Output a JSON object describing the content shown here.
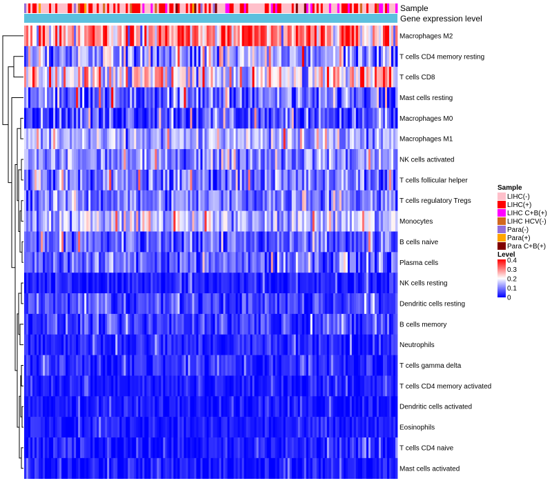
{
  "chart_data": {
    "type": "heatmap",
    "annotations": [
      {
        "name": "Sample",
        "label": "Sample"
      },
      {
        "name": "Gene expression level",
        "label": "Gene expression level"
      }
    ],
    "rows": [
      "Macrophages M2",
      "T cells CD4 memory resting",
      "T cells CD8",
      "Mast cells resting",
      "Macrophages M0",
      "Macrophages M1",
      "NK cells activated",
      "T cells follicular helper",
      "T cells regulatory  Tregs",
      "Monocytes",
      "B cells naive",
      "Plasma cells",
      "NK cells resting",
      "Dendritic cells resting",
      "B cells memory",
      "Neutrophils",
      "T cells gamma delta",
      "T cells CD4 memory activated",
      "Dendritic cells activated",
      "Eosinophils",
      "T cells CD4 naive",
      "Mast cells activated"
    ],
    "row_mean_levels": [
      0.28,
      0.12,
      0.2,
      0.09,
      0.06,
      0.13,
      0.11,
      0.09,
      0.1,
      0.15,
      0.08,
      0.08,
      0.02,
      0.05,
      0.05,
      0.03,
      0.03,
      0.02,
      0.02,
      0.02,
      0.02,
      0.02
    ],
    "row_spread": [
      0.14,
      0.1,
      0.13,
      0.09,
      0.08,
      0.07,
      0.07,
      0.08,
      0.07,
      0.08,
      0.07,
      0.07,
      0.03,
      0.05,
      0.05,
      0.04,
      0.04,
      0.03,
      0.03,
      0.03,
      0.04,
      0.04
    ],
    "n_samples": 180,
    "sample_group_weights": [
      0.55,
      0.3,
      0.06,
      0.03,
      0.02,
      0.02,
      0.02
    ],
    "color_scale": {
      "min": 0,
      "max": 0.4,
      "colors": [
        "#0000ff",
        "#ffffff",
        "#ff0000"
      ]
    },
    "legends": {
      "sample": {
        "title": "Sample",
        "items": [
          {
            "label": "LIHC(-)",
            "color": "#ffc0cb"
          },
          {
            "label": "LIHC(+)",
            "color": "#ff0000"
          },
          {
            "label": "LIHC C+B(+)",
            "color": "#ff00ff"
          },
          {
            "label": "LIHC HCV(-)",
            "color": "#d2691e"
          },
          {
            "label": "Para(-)",
            "color": "#9370db"
          },
          {
            "label": "Para(+)",
            "color": "#ffa500"
          },
          {
            "label": "Para C+B(+)",
            "color": "#800000"
          }
        ]
      },
      "level": {
        "title": "Level",
        "ticks": [
          "0.4",
          "0.3",
          "0.2",
          "0.1",
          "0"
        ]
      }
    },
    "gene_expression_color": "#5bc0de"
  }
}
